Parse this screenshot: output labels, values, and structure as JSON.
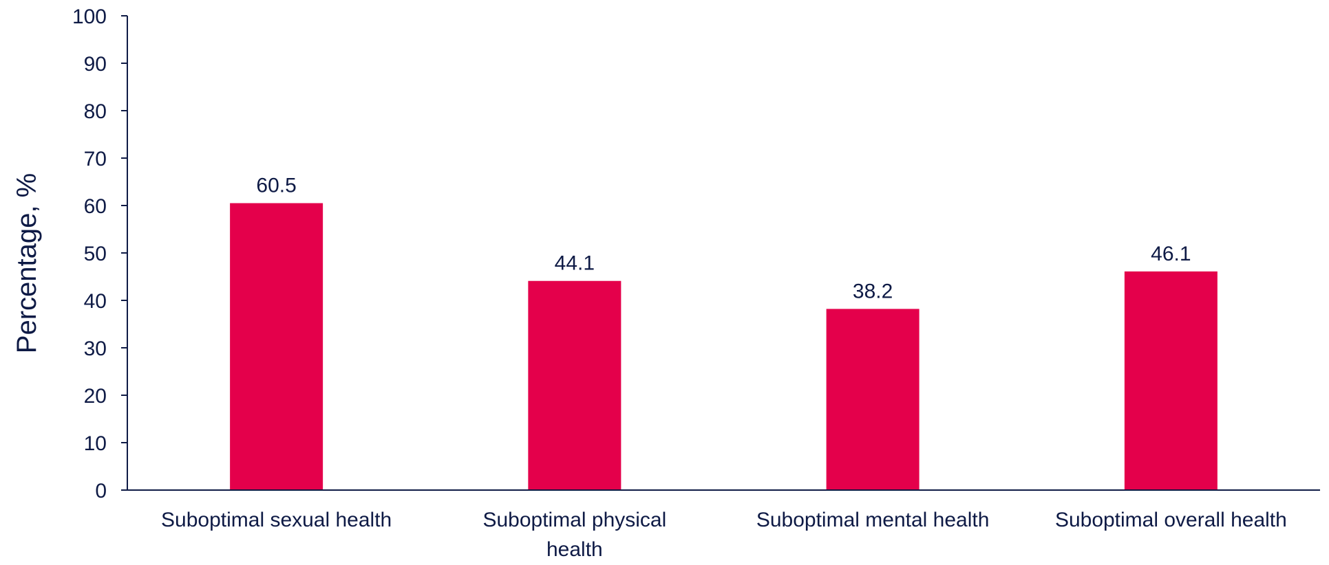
{
  "chart_data": {
    "type": "bar",
    "categories": [
      [
        "Suboptimal sexual health"
      ],
      [
        "Suboptimal physical",
        "health"
      ],
      [
        "Suboptimal mental health"
      ],
      [
        "Suboptimal overall health"
      ]
    ],
    "values": [
      60.5,
      44.1,
      38.2,
      46.1
    ],
    "data_labels": [
      "60.5",
      "44.1",
      "38.2",
      "46.1"
    ],
    "title": "",
    "xlabel": "",
    "ylabel": "Percentage, %",
    "ylim": [
      0,
      100
    ],
    "yticks": [
      0,
      10,
      20,
      30,
      40,
      50,
      60,
      70,
      80,
      90,
      100
    ],
    "grid": false,
    "legend": "none"
  },
  "colors": {
    "bar": "#e4004b",
    "text": "#0e1a45",
    "axis": "#0e1a45"
  }
}
